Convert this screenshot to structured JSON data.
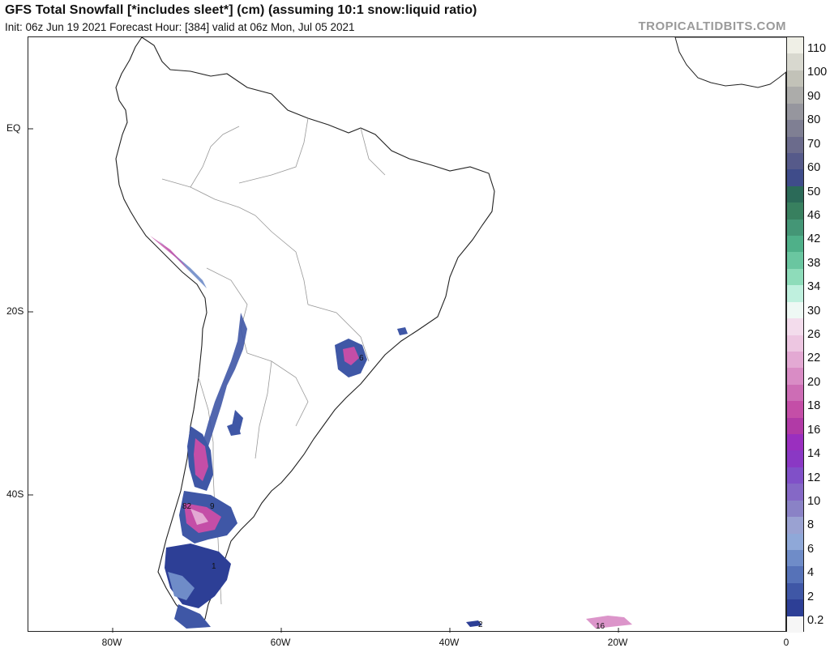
{
  "header": {
    "title": "GFS Total Snowfall [*includes sleet*] (cm) (assuming 10:1 snow:liquid ratio)",
    "subtitle": "Init: 06z Jun 19 2021   Forecast Hour: [384]   valid at 06z Mon, Jul 05 2021",
    "brand": "TROPICALTIDBITS.COM"
  },
  "axes": {
    "lat_labels": [
      "EQ",
      "20S",
      "40S"
    ],
    "lon_labels": [
      "80W",
      "60W",
      "40W",
      "20W",
      "0"
    ]
  },
  "map_labels": [
    {
      "text": "6"
    },
    {
      "text": "82"
    },
    {
      "text": "9"
    },
    {
      "text": "1"
    },
    {
      "text": "2"
    },
    {
      "text": "16"
    }
  ],
  "colorbar": {
    "labels": [
      "110",
      "100",
      "90",
      "80",
      "70",
      "60",
      "50",
      "46",
      "42",
      "38",
      "34",
      "30",
      "26",
      "22",
      "20",
      "18",
      "16",
      "14",
      "12",
      "10",
      "8",
      "6",
      "4",
      "2",
      "0.2"
    ],
    "colors": [
      "#efefe6",
      "#d8d8cf",
      "#c2c2b8",
      "#acacaa",
      "#96969e",
      "#7f7f93",
      "#6b6b8c",
      "#565a8a",
      "#3f4c8a",
      "#2b6a58",
      "#38805f",
      "#449676",
      "#4fb089",
      "#6ac6a0",
      "#8edcba",
      "#bff0de",
      "#eef8f4",
      "#f3dcec",
      "#edc6e1",
      "#e3a9d3",
      "#d98cc5",
      "#cd6db5",
      "#c44ea7",
      "#b13aa6",
      "#9a2fbf",
      "#8a38c4",
      "#8050c8",
      "#8568c6",
      "#8a82c6",
      "#9aa2d2",
      "#8fa8d8",
      "#6f8cc8",
      "#5672b8",
      "#3f57a6",
      "#2d3f96",
      "#f6f6f6"
    ]
  }
}
